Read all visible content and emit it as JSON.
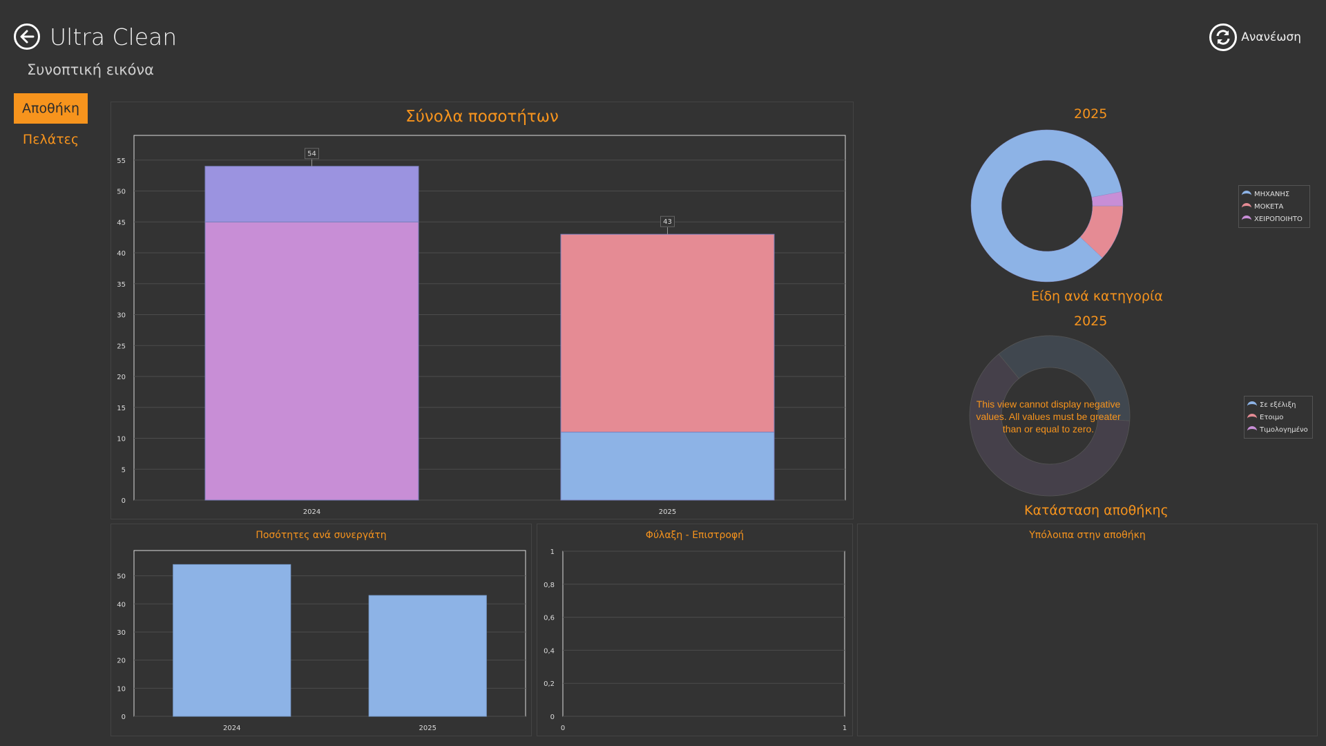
{
  "header": {
    "title": "Ultra Clean",
    "subtitle": "Συνοπτική εικόνα",
    "refresh_label": "Ανανέωση"
  },
  "nav": {
    "items": [
      {
        "label": "Αποθήκη",
        "active": true
      },
      {
        "label": "Πελάτες",
        "active": false
      }
    ]
  },
  "colors": {
    "accent": "#f7941d",
    "background": "#333333",
    "blue": "#8db3e6",
    "pink": "#e58b94",
    "lavender": "#c88ed6",
    "purple": "#9b93e0"
  },
  "main_chart": {
    "title": "Σύνολα ποσοτήτων",
    "chart_data": {
      "type": "bar",
      "stacked": true,
      "categories": [
        "2024",
        "2025"
      ],
      "series": [
        {
          "values": [
            45,
            11
          ],
          "colors": [
            "#c88ed6",
            "#8db3e6"
          ]
        },
        {
          "values": [
            9,
            32
          ],
          "colors": [
            "#9b93e0",
            "#e58b94"
          ]
        }
      ],
      "totals": [
        "54",
        "43"
      ],
      "ylim": [
        0,
        59
      ],
      "yticks": [
        "0",
        "5",
        "10",
        "15",
        "20",
        "25",
        "30",
        "35",
        "40",
        "45",
        "50",
        "55"
      ],
      "grid": true
    }
  },
  "category_donut": {
    "year": "2025",
    "title": "Είδη ανά κατηγορία",
    "chart_data": {
      "type": "pie",
      "hole": true,
      "labels": [
        "ΜΗΧΑΝΗΣ",
        "ΜΟΚΕΤΑ",
        "ΧΕΙΡΟΠΟΙΗΤΟ"
      ],
      "values": [
        85,
        12,
        3
      ],
      "colors": [
        "#8db3e6",
        "#e58b94",
        "#c88ed6"
      ],
      "legend": "right"
    }
  },
  "status_donut": {
    "year": "2025",
    "title": "Κατάσταση αποθήκης",
    "message": "This view cannot display negative values. All values must be greater than or equal to zero.",
    "chart_data": {
      "type": "pie",
      "hole": true,
      "labels": [
        "Σε εξέλιξη",
        "Ετοιμο",
        "Τιμολογημένο"
      ],
      "colors": [
        "#8db3e6",
        "#e58b94",
        "#c88ed6"
      ],
      "legend": "right"
    }
  },
  "partners_chart": {
    "title": "Ποσότητες ανά συνεργάτη",
    "chart_data": {
      "type": "bar",
      "categories": [
        "2024",
        "2025"
      ],
      "values": [
        54,
        43
      ],
      "ylim": [
        0,
        59
      ],
      "yticks": [
        "0",
        "10",
        "20",
        "30",
        "40",
        "50"
      ],
      "color": "#8db3e6",
      "grid": true
    }
  },
  "storage_chart": {
    "title": "Φύλαξη - Επιστροφή",
    "chart_data": {
      "type": "line",
      "xlim": [
        0,
        1
      ],
      "ylim": [
        0,
        1
      ],
      "xticks": [
        "0",
        "1"
      ],
      "yticks": [
        "0",
        "0,2",
        "0,4",
        "0,6",
        "0,8",
        "1"
      ],
      "grid": true
    }
  },
  "remaining": {
    "title": "Υπόλοιπα στην αποθήκη"
  }
}
